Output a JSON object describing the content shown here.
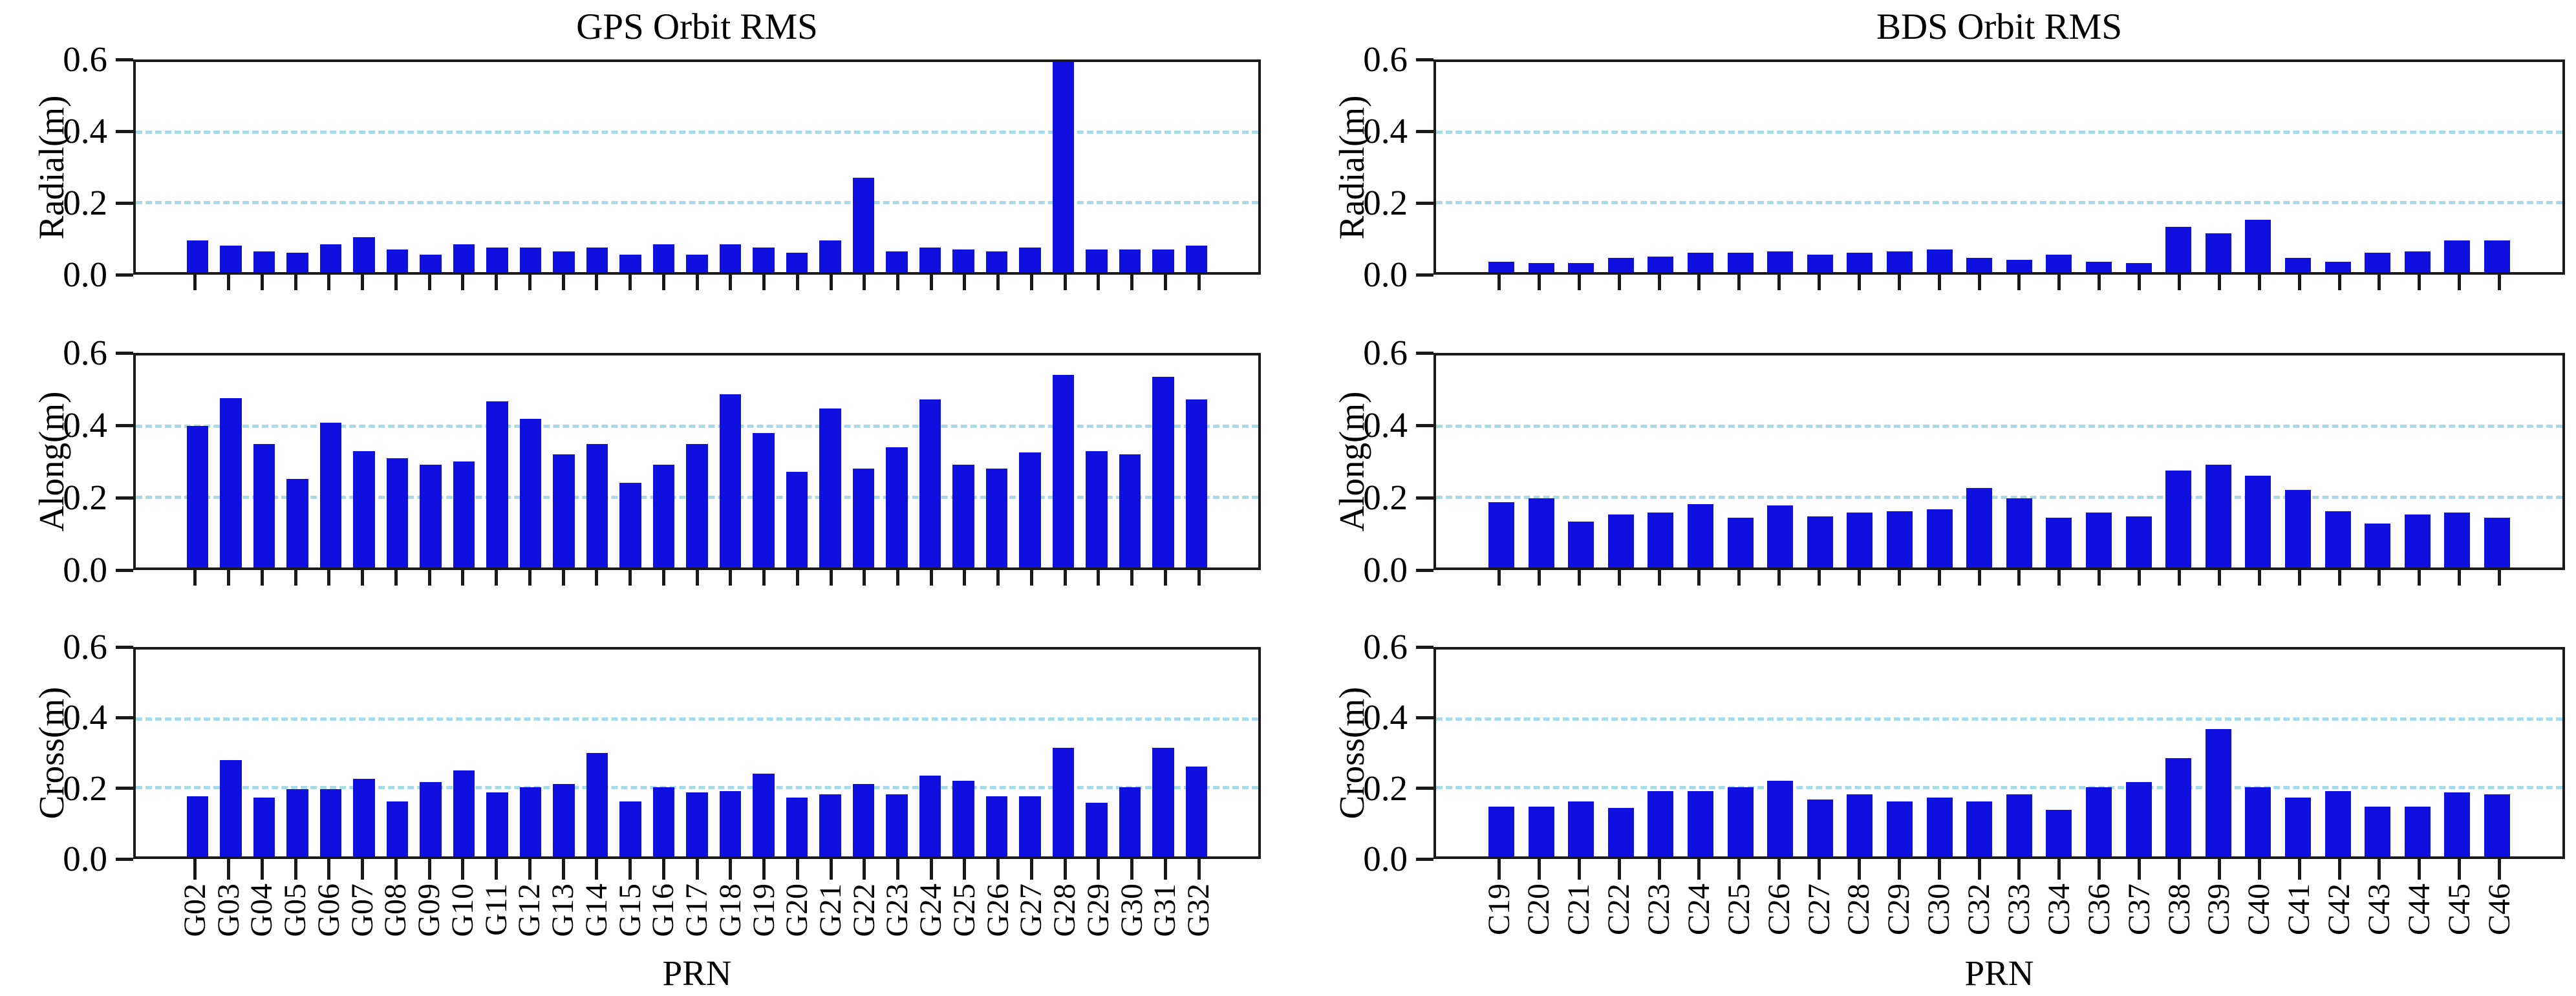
{
  "styles": {
    "bar_color": "#0f0fe0",
    "grid_color": "#a8dbe8",
    "frame_color": "#1a1a1a",
    "text_color": "#000000",
    "background": "#ffffff"
  },
  "chart_data": [
    {
      "type": "bar",
      "title": "GPS Orbit RMS",
      "ylabel": "Radial(m)",
      "xlabel": "",
      "categories": [
        "G02",
        "G03",
        "G04",
        "G05",
        "G06",
        "G07",
        "G08",
        "G09",
        "G10",
        "G11",
        "G12",
        "G13",
        "G14",
        "G15",
        "G16",
        "G17",
        "G18",
        "G19",
        "G20",
        "G21",
        "G22",
        "G23",
        "G24",
        "G25",
        "G26",
        "G27",
        "G28",
        "G29",
        "G30",
        "G31",
        "G32"
      ],
      "values": [
        0.09,
        0.075,
        0.06,
        0.055,
        0.08,
        0.1,
        0.065,
        0.05,
        0.08,
        0.07,
        0.07,
        0.06,
        0.07,
        0.05,
        0.08,
        0.05,
        0.08,
        0.07,
        0.055,
        0.09,
        0.27,
        0.06,
        0.07,
        0.065,
        0.06,
        0.07,
        0.6,
        0.065,
        0.065,
        0.065,
        0.075
      ],
      "ylim": [
        0,
        0.6
      ],
      "yticks": [
        "0.0",
        "0.2",
        "0.4",
        "0.6"
      ],
      "gridlines": [
        0.2,
        0.4
      ],
      "grid": "dashed",
      "legend": "none"
    },
    {
      "type": "bar",
      "title": "",
      "ylabel": "Along(m)",
      "xlabel": "",
      "categories": [
        "G02",
        "G03",
        "G04",
        "G05",
        "G06",
        "G07",
        "G08",
        "G09",
        "G10",
        "G11",
        "G12",
        "G13",
        "G14",
        "G15",
        "G16",
        "G17",
        "G18",
        "G19",
        "G20",
        "G21",
        "G22",
        "G23",
        "G24",
        "G25",
        "G26",
        "G27",
        "G28",
        "G29",
        "G30",
        "G31",
        "G32"
      ],
      "values": [
        0.4,
        0.48,
        0.35,
        0.25,
        0.41,
        0.33,
        0.31,
        0.29,
        0.3,
        0.47,
        0.42,
        0.32,
        0.35,
        0.24,
        0.29,
        0.35,
        0.49,
        0.38,
        0.27,
        0.45,
        0.28,
        0.34,
        0.475,
        0.29,
        0.28,
        0.325,
        0.545,
        0.33,
        0.32,
        0.54,
        0.475
      ],
      "ylim": [
        0,
        0.6
      ],
      "yticks": [
        "0.0",
        "0.2",
        "0.4",
        "0.6"
      ],
      "gridlines": [
        0.2,
        0.4
      ],
      "grid": "dashed",
      "legend": "none"
    },
    {
      "type": "bar",
      "title": "",
      "ylabel": "Cross(m)",
      "xlabel": "PRN",
      "categories": [
        "G02",
        "G03",
        "G04",
        "G05",
        "G06",
        "G07",
        "G08",
        "G09",
        "G10",
        "G11",
        "G12",
        "G13",
        "G14",
        "G15",
        "G16",
        "G17",
        "G18",
        "G19",
        "G20",
        "G21",
        "G22",
        "G23",
        "G24",
        "G25",
        "G26",
        "G27",
        "G28",
        "G29",
        "G30",
        "G31",
        "G32"
      ],
      "values": [
        0.175,
        0.28,
        0.17,
        0.195,
        0.195,
        0.225,
        0.16,
        0.215,
        0.25,
        0.185,
        0.2,
        0.21,
        0.3,
        0.16,
        0.2,
        0.185,
        0.19,
        0.24,
        0.17,
        0.18,
        0.21,
        0.18,
        0.235,
        0.22,
        0.175,
        0.175,
        0.315,
        0.155,
        0.2,
        0.315,
        0.26
      ],
      "ylim": [
        0,
        0.6
      ],
      "yticks": [
        "0.0",
        "0.2",
        "0.4",
        "0.6"
      ],
      "gridlines": [
        0.2,
        0.4
      ],
      "grid": "dashed",
      "legend": "none"
    },
    {
      "type": "bar",
      "title": "BDS Orbit RMS",
      "ylabel": "Radial(m)",
      "xlabel": "",
      "categories": [
        "C19",
        "C20",
        "C21",
        "C22",
        "C23",
        "C24",
        "C25",
        "C26",
        "C27",
        "C28",
        "C29",
        "C30",
        "C32",
        "C33",
        "C34",
        "C36",
        "C37",
        "C38",
        "C39",
        "C40",
        "C41",
        "C42",
        "C43",
        "C44",
        "C45",
        "C46"
      ],
      "values": [
        0.03,
        0.025,
        0.025,
        0.04,
        0.045,
        0.055,
        0.055,
        0.06,
        0.05,
        0.055,
        0.06,
        0.065,
        0.04,
        0.035,
        0.05,
        0.03,
        0.025,
        0.13,
        0.11,
        0.15,
        0.04,
        0.03,
        0.055,
        0.06,
        0.09,
        0.09
      ],
      "ylim": [
        0,
        0.6
      ],
      "yticks": [
        "0.0",
        "0.2",
        "0.4",
        "0.6"
      ],
      "gridlines": [
        0.2,
        0.4
      ],
      "grid": "dashed",
      "legend": "none"
    },
    {
      "type": "bar",
      "title": "",
      "ylabel": "Along(m)",
      "xlabel": "",
      "categories": [
        "C19",
        "C20",
        "C21",
        "C22",
        "C23",
        "C24",
        "C25",
        "C26",
        "C27",
        "C28",
        "C29",
        "C30",
        "C32",
        "C33",
        "C34",
        "C36",
        "C37",
        "C38",
        "C39",
        "C40",
        "C41",
        "C42",
        "C43",
        "C44",
        "C45",
        "C46"
      ],
      "values": [
        0.185,
        0.195,
        0.13,
        0.15,
        0.155,
        0.18,
        0.14,
        0.175,
        0.145,
        0.155,
        0.16,
        0.165,
        0.225,
        0.195,
        0.14,
        0.155,
        0.145,
        0.275,
        0.29,
        0.26,
        0.22,
        0.16,
        0.125,
        0.15,
        0.155,
        0.14
      ],
      "ylim": [
        0,
        0.6
      ],
      "yticks": [
        "0.0",
        "0.2",
        "0.4",
        "0.6"
      ],
      "gridlines": [
        0.2,
        0.4
      ],
      "grid": "dashed",
      "legend": "none"
    },
    {
      "type": "bar",
      "title": "",
      "ylabel": "Cross(m)",
      "xlabel": "PRN",
      "categories": [
        "C19",
        "C20",
        "C21",
        "C22",
        "C23",
        "C24",
        "C25",
        "C26",
        "C27",
        "C28",
        "C29",
        "C30",
        "C32",
        "C33",
        "C34",
        "C36",
        "C37",
        "C38",
        "C39",
        "C40",
        "C41",
        "C42",
        "C43",
        "C44",
        "C45",
        "C46"
      ],
      "values": [
        0.145,
        0.145,
        0.16,
        0.14,
        0.19,
        0.19,
        0.2,
        0.22,
        0.165,
        0.18,
        0.16,
        0.17,
        0.16,
        0.18,
        0.135,
        0.2,
        0.215,
        0.285,
        0.37,
        0.2,
        0.17,
        0.19,
        0.145,
        0.145,
        0.185,
        0.18
      ],
      "ylim": [
        0,
        0.6
      ],
      "yticks": [
        "0.0",
        "0.2",
        "0.4",
        "0.6"
      ],
      "gridlines": [
        0.2,
        0.4
      ],
      "grid": "dashed",
      "legend": "none"
    }
  ]
}
